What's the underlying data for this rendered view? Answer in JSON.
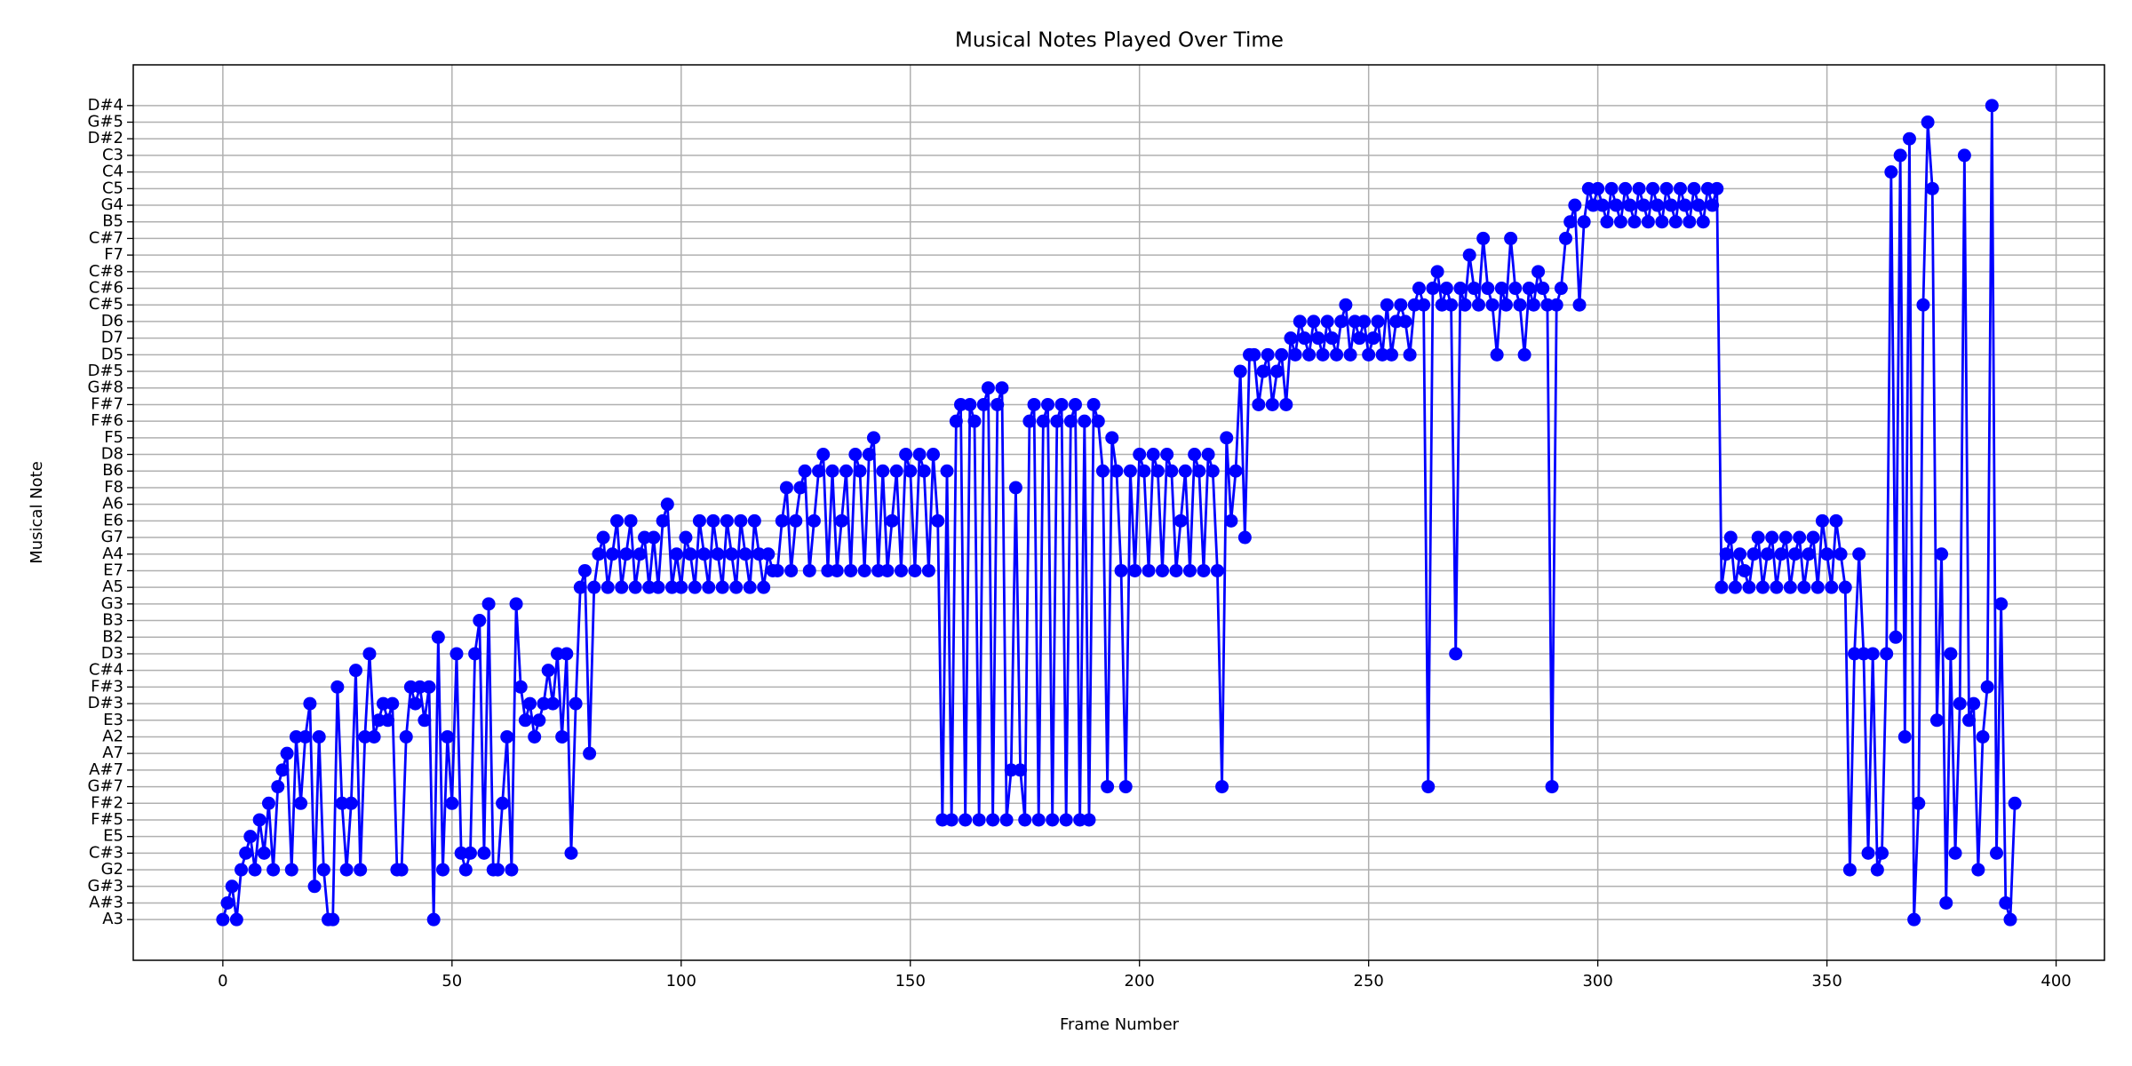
{
  "chart_data": {
    "type": "line",
    "title": "Musical Notes Played Over Time",
    "xlabel": "Frame Number",
    "ylabel": "Musical Note",
    "color": "#0000ff",
    "grid": true,
    "marker": "o",
    "xlim": [
      -19.55,
      410.55
    ],
    "xticks": [
      0,
      50,
      100,
      150,
      200,
      250,
      300,
      350,
      400
    ],
    "y_categories": [
      "A3",
      "A#3",
      "G#3",
      "G2",
      "C#3",
      "E5",
      "F#5",
      "F#2",
      "G#7",
      "A#7",
      "A7",
      "A2",
      "E3",
      "D#3",
      "F#3",
      "C#4",
      "D3",
      "B2",
      "B3",
      "G3",
      "A5",
      "E7",
      "A4",
      "G7",
      "E6",
      "A6",
      "F8",
      "B6",
      "D8",
      "F5",
      "F#6",
      "F#7",
      "G#8",
      "D#5",
      "D5",
      "D7",
      "D6",
      "C#5",
      "C#6",
      "C#8",
      "F7",
      "C#7",
      "B5",
      "G4",
      "C5",
      "C4",
      "C3",
      "D#2",
      "G#5",
      "D#4"
    ],
    "x": [
      0,
      1,
      2,
      3,
      4,
      5,
      6,
      7,
      8,
      9,
      10,
      11,
      12,
      13,
      14,
      15,
      16,
      17,
      18,
      19,
      20,
      21,
      22,
      23,
      24,
      25,
      26,
      27,
      28,
      29,
      30,
      31,
      32,
      33,
      34,
      35,
      36,
      37,
      38,
      39,
      40,
      41,
      42,
      43,
      44,
      45,
      46,
      47,
      48,
      49,
      50,
      51,
      52,
      53,
      54,
      55,
      56,
      57,
      58,
      59,
      60,
      61,
      62,
      63,
      64,
      65,
      66,
      67,
      68,
      69,
      70,
      71,
      72,
      73,
      74,
      75,
      76,
      77,
      78,
      79,
      80,
      81,
      82,
      83,
      84,
      85,
      86,
      87,
      88,
      89,
      90,
      91,
      92,
      93,
      94,
      95,
      96,
      97,
      98,
      99,
      100,
      101,
      102,
      103,
      104,
      105,
      106,
      107,
      108,
      109,
      110,
      111,
      112,
      113,
      114,
      115,
      116,
      117,
      118,
      119,
      120,
      121,
      122,
      123,
      124,
      125,
      126,
      127,
      128,
      129,
      130,
      131,
      132,
      133,
      134,
      135,
      136,
      137,
      138,
      139,
      140,
      141,
      142,
      143,
      144,
      145,
      146,
      147,
      148,
      149,
      150,
      151,
      152,
      153,
      154,
      155,
      156,
      157,
      158,
      159,
      160,
      161,
      162,
      163,
      164,
      165,
      166,
      167,
      168,
      169,
      170,
      171,
      172,
      173,
      174,
      175,
      176,
      177,
      178,
      179,
      180,
      181,
      182,
      183,
      184,
      185,
      186,
      187,
      188,
      189,
      190,
      191,
      192,
      193,
      194,
      195,
      196,
      197,
      198,
      199,
      200,
      201,
      202,
      203,
      204,
      205,
      206,
      207,
      208,
      209,
      210,
      211,
      212,
      213,
      214,
      215,
      216,
      217,
      218,
      219,
      220,
      221,
      222,
      223,
      224,
      225,
      226,
      227,
      228,
      229,
      230,
      231,
      232,
      233,
      234,
      235,
      236,
      237,
      238,
      239,
      240,
      241,
      242,
      243,
      244,
      245,
      246,
      247,
      248,
      249,
      250,
      251,
      252,
      253,
      254,
      255,
      256,
      257,
      258,
      259,
      260,
      261,
      262,
      263,
      264,
      265,
      266,
      267,
      268,
      269,
      270,
      271,
      272,
      273,
      274,
      275,
      276,
      277,
      278,
      279,
      280,
      281,
      282,
      283,
      284,
      285,
      286,
      287,
      288,
      289,
      290,
      291,
      292,
      293,
      294,
      295,
      296,
      297,
      298,
      299,
      300,
      301,
      302,
      303,
      304,
      305,
      306,
      307,
      308,
      309,
      310,
      311,
      312,
      313,
      314,
      315,
      316,
      317,
      318,
      319,
      320,
      321,
      322,
      323,
      324,
      325,
      326,
      327,
      328,
      329,
      330,
      331,
      332,
      333,
      334,
      335,
      336,
      337,
      338,
      339,
      340,
      341,
      342,
      343,
      344,
      345,
      346,
      347,
      348,
      349,
      350,
      351,
      352,
      353,
      354,
      355,
      356,
      357,
      358,
      359,
      360,
      361,
      362,
      363,
      364,
      365,
      366,
      367,
      368,
      369,
      370,
      371,
      372,
      373,
      374,
      375,
      376,
      377,
      378,
      379,
      380,
      381,
      382,
      383,
      384,
      385,
      386,
      387,
      388,
      389,
      390,
      391
    ],
    "values": [
      "A3",
      "A#3",
      "G#3",
      "A3",
      "G2",
      "C#3",
      "E5",
      "G2",
      "F#5",
      "C#3",
      "F#2",
      "G2",
      "G#7",
      "A#7",
      "A7",
      "G2",
      "A2",
      "F#2",
      "A2",
      "D#3",
      "G#3",
      "A2",
      "G2",
      "A3",
      "A3",
      "F#3",
      "F#2",
      "G2",
      "F#2",
      "C#4",
      "G2",
      "A2",
      "D3",
      "A2",
      "E3",
      "D#3",
      "E3",
      "D#3",
      "G2",
      "G2",
      "A2",
      "F#3",
      "D#3",
      "F#3",
      "E3",
      "F#3",
      "A3",
      "B2",
      "G2",
      "A2",
      "F#2",
      "D3",
      "C#3",
      "G2",
      "C#3",
      "D3",
      "B3",
      "C#3",
      "G3",
      "G2",
      "G2",
      "F#2",
      "A2",
      "G2",
      "G3",
      "F#3",
      "E3",
      "D#3",
      "A2",
      "E3",
      "D#3",
      "C#4",
      "D#3",
      "D3",
      "A2",
      "D3",
      "C#3",
      "D#3",
      "A5",
      "E7",
      "A7",
      "A5",
      "A4",
      "G7",
      "A5",
      "A4",
      "E6",
      "A5",
      "A4",
      "E6",
      "A5",
      "A4",
      "G7",
      "A5",
      "G7",
      "A5",
      "E6",
      "A6",
      "A5",
      "A4",
      "A5",
      "G7",
      "A4",
      "A5",
      "E6",
      "A4",
      "A5",
      "E6",
      "A4",
      "A5",
      "E6",
      "A4",
      "A5",
      "E6",
      "A4",
      "A5",
      "E6",
      "A4",
      "A5",
      "A4",
      "E7",
      "E7",
      "E6",
      "F8",
      "E7",
      "E6",
      "F8",
      "B6",
      "E7",
      "E6",
      "B6",
      "D8",
      "E7",
      "B6",
      "E7",
      "E6",
      "B6",
      "E7",
      "D8",
      "B6",
      "E7",
      "D8",
      "F5",
      "E7",
      "B6",
      "E7",
      "E6",
      "B6",
      "E7",
      "D8",
      "B6",
      "E7",
      "D8",
      "B6",
      "E7",
      "D8",
      "E6",
      "F#5",
      "B6",
      "F#5",
      "F#6",
      "F#7",
      "F#5",
      "F#7",
      "F#6",
      "F#5",
      "F#7",
      "G#8",
      "F#5",
      "F#7",
      "G#8",
      "F#5",
      "A#7",
      "F8",
      "A#7",
      "F#5",
      "F#6",
      "F#7",
      "F#5",
      "F#6",
      "F#7",
      "F#5",
      "F#6",
      "F#7",
      "F#5",
      "F#6",
      "F#7",
      "F#5",
      "F#6",
      "F#5",
      "F#7",
      "F#6",
      "B6",
      "G#7",
      "F5",
      "B6",
      "E7",
      "G#7",
      "B6",
      "E7",
      "D8",
      "B6",
      "E7",
      "D8",
      "B6",
      "E7",
      "D8",
      "B6",
      "E7",
      "E6",
      "B6",
      "E7",
      "D8",
      "B6",
      "E7",
      "D8",
      "B6",
      "E7",
      "G#7",
      "F5",
      "E6",
      "B6",
      "D#5",
      "G7",
      "D5",
      "D5",
      "F#7",
      "D#5",
      "D5",
      "F#7",
      "D#5",
      "D5",
      "F#7",
      "D7",
      "D5",
      "D6",
      "D7",
      "D5",
      "D6",
      "D7",
      "D5",
      "D6",
      "D7",
      "D5",
      "D6",
      "C#5",
      "D5",
      "D6",
      "D7",
      "D6",
      "D5",
      "D7",
      "D6",
      "D5",
      "C#5",
      "D5",
      "D6",
      "C#5",
      "D6",
      "D5",
      "C#5",
      "C#6",
      "C#5",
      "G#7",
      "C#6",
      "C#8",
      "C#5",
      "C#6",
      "C#5",
      "D3",
      "C#6",
      "C#5",
      "F7",
      "C#6",
      "C#5",
      "C#7",
      "C#6",
      "C#5",
      "D5",
      "C#6",
      "C#5",
      "C#7",
      "C#6",
      "C#5",
      "D5",
      "C#6",
      "C#5",
      "C#8",
      "C#6",
      "C#5",
      "G#7",
      "C#5",
      "C#6",
      "C#7",
      "B5",
      "G4",
      "C#5",
      "B5",
      "C5",
      "G4",
      "C5",
      "G4",
      "B5",
      "C5",
      "G4",
      "B5",
      "C5",
      "G4",
      "B5",
      "C5",
      "G4",
      "B5",
      "C5",
      "G4",
      "B5",
      "C5",
      "G4",
      "B5",
      "C5",
      "G4",
      "B5",
      "C5",
      "G4",
      "B5",
      "C5",
      "G4",
      "C5",
      "A5",
      "A4",
      "G7",
      "A5",
      "A4",
      "E7",
      "A5",
      "A4",
      "G7",
      "A5",
      "A4",
      "G7",
      "A5",
      "A4",
      "G7",
      "A5",
      "A4",
      "G7",
      "A5",
      "A4",
      "G7",
      "A5",
      "E6",
      "A4",
      "A5",
      "E6",
      "A4",
      "A5",
      "G2",
      "D3",
      "A4",
      "D3",
      "C#3",
      "D3",
      "G2",
      "C#3",
      "D3",
      "C4",
      "B2",
      "C3",
      "A2",
      "D#2",
      "A3",
      "F#2",
      "C#5",
      "G#5",
      "C5",
      "E3",
      "A4",
      "A#3",
      "D3",
      "C#3",
      "D#3",
      "C3",
      "E3",
      "D#3",
      "G2",
      "A2",
      "F#3",
      "D#4",
      "C#3",
      "G3",
      "A#3",
      "A3",
      "F#2"
    ]
  }
}
